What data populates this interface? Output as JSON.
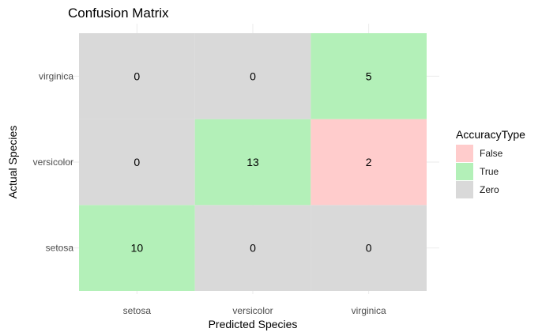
{
  "chart_data": {
    "type": "heatmap",
    "title": "Confusion Matrix",
    "xlabel": "Predicted Species",
    "ylabel": "Actual Species",
    "x_categories": [
      "setosa",
      "versicolor",
      "virginica"
    ],
    "y_categories": [
      "setosa",
      "versicolor",
      "virginica"
    ],
    "cells": [
      {
        "actual": "setosa",
        "predicted": "setosa",
        "value": 10,
        "type": "True"
      },
      {
        "actual": "setosa",
        "predicted": "versicolor",
        "value": 0,
        "type": "Zero"
      },
      {
        "actual": "setosa",
        "predicted": "virginica",
        "value": 0,
        "type": "Zero"
      },
      {
        "actual": "versicolor",
        "predicted": "setosa",
        "value": 0,
        "type": "Zero"
      },
      {
        "actual": "versicolor",
        "predicted": "versicolor",
        "value": 13,
        "type": "True"
      },
      {
        "actual": "versicolor",
        "predicted": "virginica",
        "value": 2,
        "type": "False"
      },
      {
        "actual": "virginica",
        "predicted": "setosa",
        "value": 0,
        "type": "Zero"
      },
      {
        "actual": "virginica",
        "predicted": "versicolor",
        "value": 0,
        "type": "Zero"
      },
      {
        "actual": "virginica",
        "predicted": "virginica",
        "value": 5,
        "type": "True"
      }
    ],
    "legend": {
      "title": "AccuracyType",
      "position": "right",
      "entries": [
        {
          "label": "False",
          "color": "#ffcccc"
        },
        {
          "label": "True",
          "color": "#b3f0b8"
        },
        {
          "label": "Zero",
          "color": "#d9d9d9"
        }
      ]
    },
    "grid": true
  }
}
